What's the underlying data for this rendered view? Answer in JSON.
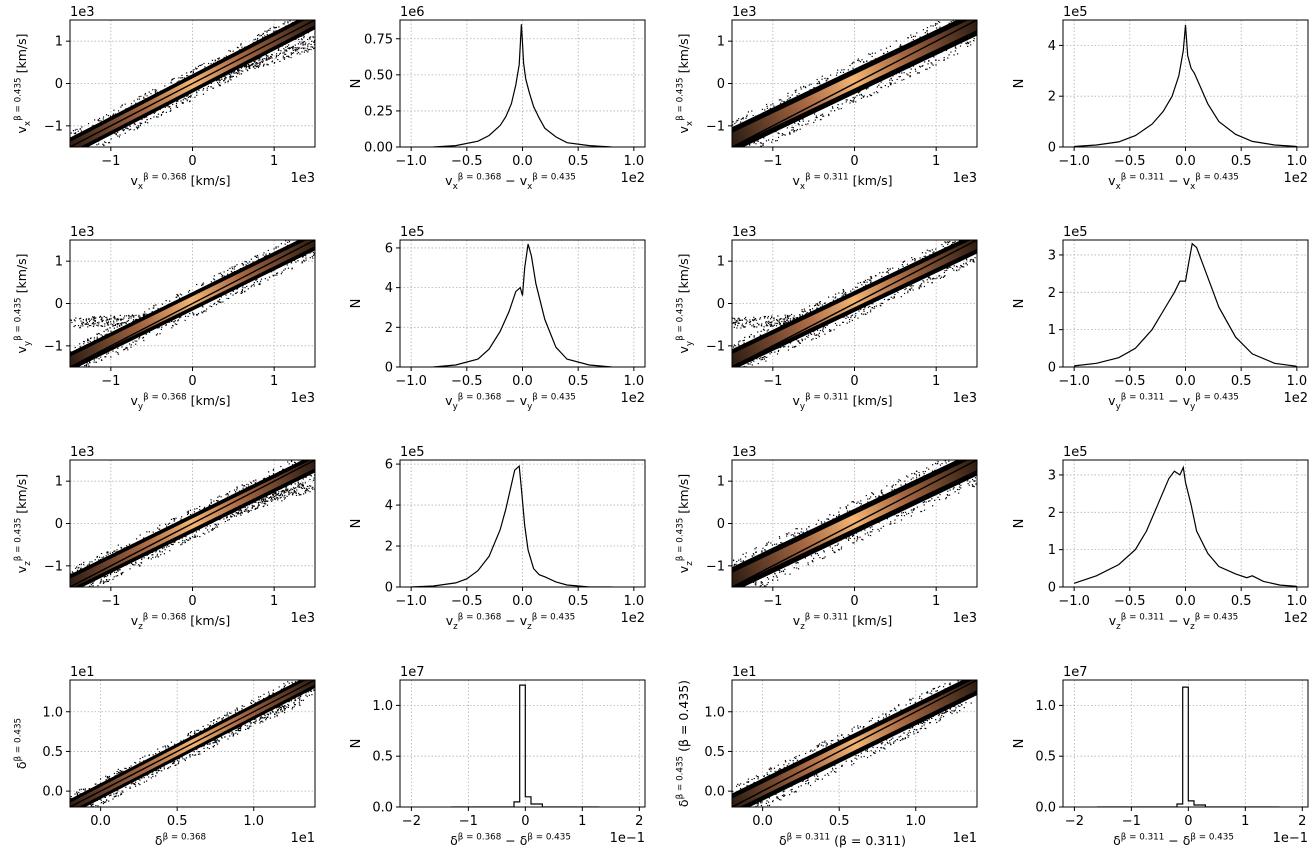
{
  "figure": {
    "background": "#ffffff",
    "frame_color": "#000000",
    "grid_color": "#b0b0b0"
  },
  "chart_data": [
    {
      "type": "scatter",
      "xlabel": "v_x^{β = 0.368} [km/s]",
      "ylabel": "v_x^{β = 0.435} [km/s]",
      "x_offset": "1e3",
      "y_offset": "1e3",
      "xlim": [
        -1.5,
        1.5
      ],
      "ylim": [
        -1.5,
        1.5
      ],
      "xticks": [
        -1,
        0,
        1
      ],
      "yticks": [
        -1,
        0,
        1
      ],
      "grid": true,
      "band": {
        "slope": 1.0,
        "intercept": 0.0,
        "halfwidth": 0.22
      },
      "cmap": "copper",
      "scatter_outliers": {
        "slope": 0.62,
        "intercept": 0.0,
        "x_range": [
          0.3,
          1.5
        ]
      },
      "series": [
        {
          "name": "",
          "x": [
            -1.5,
            1.5
          ],
          "y": [
            -1.5,
            1.5
          ]
        }
      ]
    },
    {
      "type": "line",
      "xlabel": "v_x^{β = 0.368} − v_x^{β = 0.435}",
      "ylabel": "N",
      "x_offset": "1e2",
      "y_offset": "1e6",
      "xlim": [
        -1.1,
        1.1
      ],
      "ylim": [
        0,
        0.88
      ],
      "xticks": [
        -1.0,
        -0.5,
        0.0,
        0.5,
        1.0
      ],
      "xtick_labels": [
        "−1.0",
        "−0.5",
        "0.0",
        "0.5",
        "1.0"
      ],
      "yticks": [
        0.0,
        0.25,
        0.5,
        0.75
      ],
      "ytick_labels": [
        "0.00",
        "0.25",
        "0.50",
        "0.75"
      ],
      "grid": true,
      "series": [
        {
          "name": "",
          "x": [
            -0.8,
            -0.6,
            -0.4,
            -0.3,
            -0.2,
            -0.15,
            -0.1,
            -0.06,
            -0.03,
            -0.01,
            0.0,
            0.01,
            0.03,
            0.06,
            0.1,
            0.15,
            0.2,
            0.3,
            0.4,
            0.6,
            0.8
          ],
          "y": [
            0.0,
            0.01,
            0.04,
            0.08,
            0.15,
            0.21,
            0.3,
            0.43,
            0.57,
            0.85,
            0.72,
            0.58,
            0.47,
            0.38,
            0.28,
            0.2,
            0.13,
            0.07,
            0.03,
            0.01,
            0.0
          ]
        }
      ]
    },
    {
      "type": "scatter",
      "xlabel": "v_x^{β = 0.311} [km/s]",
      "ylabel": "v_x^{β = 0.435} [km/s]",
      "x_offset": "1e3",
      "y_offset": "1e3",
      "xlim": [
        -1.5,
        1.5
      ],
      "ylim": [
        -1.5,
        1.5
      ],
      "xticks": [
        -1,
        0,
        1
      ],
      "yticks": [
        -1,
        0,
        1
      ],
      "grid": true,
      "band": {
        "slope": 0.92,
        "intercept": 0.05,
        "halfwidth": 0.3
      },
      "cmap": "copper",
      "series": [
        {
          "name": "",
          "x": [
            -1.5,
            1.5
          ],
          "y": [
            -1.5,
            1.5
          ]
        }
      ]
    },
    {
      "type": "line",
      "xlabel": "v_x^{β = 0.311} − v_x^{β = 0.435}",
      "ylabel": "N",
      "x_offset": "1e2",
      "y_offset": "1e5",
      "xlim": [
        -1.1,
        1.1
      ],
      "ylim": [
        0,
        5.0
      ],
      "xticks": [
        -1.0,
        -0.5,
        0.0,
        0.5,
        1.0
      ],
      "xtick_labels": [
        "−1.0",
        "−0.5",
        "0.0",
        "0.5",
        "1.0"
      ],
      "yticks": [
        0,
        2,
        4
      ],
      "ytick_labels": [
        "0",
        "2",
        "4"
      ],
      "grid": true,
      "series": [
        {
          "name": "",
          "x": [
            -1.0,
            -0.8,
            -0.6,
            -0.45,
            -0.3,
            -0.2,
            -0.12,
            -0.06,
            -0.02,
            0.0,
            0.02,
            0.05,
            0.08,
            0.12,
            0.2,
            0.3,
            0.45,
            0.6,
            0.8,
            1.0
          ],
          "y": [
            0.02,
            0.08,
            0.2,
            0.45,
            0.9,
            1.4,
            2.0,
            2.8,
            3.8,
            4.8,
            3.6,
            3.1,
            2.9,
            2.5,
            1.7,
            1.0,
            0.5,
            0.22,
            0.08,
            0.02
          ]
        }
      ]
    },
    {
      "type": "scatter",
      "xlabel": "v_y^{β = 0.368} [km/s]",
      "ylabel": "v_y^{β = 0.435} [km/s]",
      "x_offset": "1e3",
      "y_offset": "1e3",
      "xlim": [
        -1.5,
        1.5
      ],
      "ylim": [
        -1.5,
        1.5
      ],
      "xticks": [
        -1,
        0,
        1
      ],
      "yticks": [
        -1,
        0,
        1
      ],
      "grid": true,
      "band": {
        "slope": 0.95,
        "intercept": 0.05,
        "halfwidth": 0.22
      },
      "cmap": "copper",
      "scatter_outliers": {
        "slope": 0.1,
        "intercept": -0.3,
        "x_range": [
          -1.5,
          -0.4
        ]
      },
      "series": [
        {
          "name": "",
          "x": [
            -1.5,
            1.5
          ],
          "y": [
            -1.5,
            1.5
          ]
        }
      ]
    },
    {
      "type": "line",
      "xlabel": "v_y^{β = 0.368} − v_y^{β = 0.435}",
      "ylabel": "N",
      "x_offset": "1e2",
      "y_offset": "1e5",
      "xlim": [
        -1.1,
        1.1
      ],
      "ylim": [
        0,
        6.4
      ],
      "xticks": [
        -1.0,
        -0.5,
        0.0,
        0.5,
        1.0
      ],
      "xtick_labels": [
        "−1.0",
        "−0.5",
        "0.0",
        "0.5",
        "1.0"
      ],
      "yticks": [
        0,
        2,
        4,
        6
      ],
      "ytick_labels": [
        "0",
        "2",
        "4",
        "6"
      ],
      "grid": true,
      "series": [
        {
          "name": "",
          "x": [
            -0.8,
            -0.6,
            -0.4,
            -0.3,
            -0.2,
            -0.12,
            -0.06,
            -0.02,
            0.0,
            0.02,
            0.05,
            0.08,
            0.12,
            0.2,
            0.3,
            0.4,
            0.6,
            0.8
          ],
          "y": [
            0.0,
            0.1,
            0.4,
            0.9,
            1.8,
            2.8,
            3.8,
            4.0,
            3.6,
            5.0,
            6.2,
            5.6,
            4.2,
            2.4,
            1.0,
            0.4,
            0.1,
            0.0
          ]
        }
      ]
    },
    {
      "type": "scatter",
      "xlabel": "v_y^{β = 0.311} [km/s]",
      "ylabel": "v_y^{β = 0.435} [km/s]",
      "x_offset": "1e3",
      "y_offset": "1e3",
      "xlim": [
        -1.5,
        1.5
      ],
      "ylim": [
        -1.5,
        1.5
      ],
      "xticks": [
        -1,
        0,
        1
      ],
      "yticks": [
        -1,
        0,
        1
      ],
      "grid": true,
      "band": {
        "slope": 0.92,
        "intercept": 0.05,
        "halfwidth": 0.25
      },
      "cmap": "copper",
      "scatter_outliers": {
        "slope": 0.1,
        "intercept": -0.3,
        "x_range": [
          -1.5,
          -0.4
        ]
      },
      "series": [
        {
          "name": "",
          "x": [
            -1.5,
            1.5
          ],
          "y": [
            -1.5,
            1.5
          ]
        }
      ]
    },
    {
      "type": "line",
      "xlabel": "v_y^{β = 0.311} − v_y^{β = 0.435}",
      "ylabel": "N",
      "x_offset": "1e2",
      "y_offset": "1e5",
      "xlim": [
        -1.1,
        1.1
      ],
      "ylim": [
        0,
        3.4
      ],
      "xticks": [
        -1.0,
        -0.5,
        0.0,
        0.5,
        1.0
      ],
      "xtick_labels": [
        "−1.0",
        "−0.5",
        "0.0",
        "0.5",
        "1.0"
      ],
      "yticks": [
        0,
        1,
        2,
        3
      ],
      "ytick_labels": [
        "0",
        "1",
        "2",
        "3"
      ],
      "grid": true,
      "series": [
        {
          "name": "",
          "x": [
            -1.0,
            -0.8,
            -0.6,
            -0.45,
            -0.3,
            -0.2,
            -0.1,
            -0.05,
            0.0,
            0.03,
            0.06,
            0.1,
            0.15,
            0.2,
            0.3,
            0.45,
            0.6,
            0.8,
            1.0
          ],
          "y": [
            0.03,
            0.1,
            0.25,
            0.5,
            1.0,
            1.5,
            2.0,
            2.3,
            2.3,
            2.8,
            3.3,
            3.2,
            2.8,
            2.4,
            1.6,
            0.8,
            0.35,
            0.1,
            0.02
          ]
        }
      ]
    },
    {
      "type": "scatter",
      "xlabel": "v_z^{β = 0.368} [km/s]",
      "ylabel": "v_z^{β = 0.435} [km/s]",
      "x_offset": "1e3",
      "y_offset": "1e3",
      "xlim": [
        -1.5,
        1.5
      ],
      "ylim": [
        -1.5,
        1.5
      ],
      "xticks": [
        -1,
        0,
        1
      ],
      "yticks": [
        -1,
        0,
        1
      ],
      "grid": true,
      "band": {
        "slope": 0.95,
        "intercept": 0.0,
        "halfwidth": 0.22
      },
      "cmap": "copper",
      "scatter_outliers": {
        "slope": 0.62,
        "intercept": 0.0,
        "x_range": [
          0.3,
          1.5
        ]
      },
      "series": [
        {
          "name": "",
          "x": [
            -1.5,
            1.5
          ],
          "y": [
            -1.5,
            1.5
          ]
        }
      ]
    },
    {
      "type": "line",
      "xlabel": "v_z^{β = 0.368} − v_z^{β = 0.435}",
      "ylabel": "N",
      "x_offset": "1e2",
      "y_offset": "1e5",
      "xlim": [
        -1.1,
        1.1
      ],
      "ylim": [
        0,
        6.2
      ],
      "xticks": [
        -1.0,
        -0.5,
        0.0,
        0.5,
        1.0
      ],
      "xtick_labels": [
        "−1.0",
        "−0.5",
        "0.0",
        "0.5",
        "1.0"
      ],
      "yticks": [
        0,
        2,
        4,
        6
      ],
      "ytick_labels": [
        "0",
        "2",
        "4",
        "6"
      ],
      "grid": true,
      "series": [
        {
          "name": "",
          "x": [
            -1.0,
            -0.8,
            -0.6,
            -0.5,
            -0.4,
            -0.3,
            -0.2,
            -0.15,
            -0.1,
            -0.07,
            -0.05,
            -0.03,
            -0.01,
            0.02,
            0.05,
            0.1,
            0.15,
            0.2,
            0.3,
            0.4,
            0.6,
            0.8
          ],
          "y": [
            0.0,
            0.05,
            0.2,
            0.4,
            0.8,
            1.5,
            2.8,
            3.8,
            5.0,
            5.7,
            5.8,
            5.9,
            4.8,
            3.0,
            1.8,
            0.9,
            0.6,
            0.5,
            0.25,
            0.1,
            0.0,
            0.0
          ]
        }
      ]
    },
    {
      "type": "scatter",
      "xlabel": "v_z^{β = 0.311} [km/s]",
      "ylabel": "v_z^{β = 0.435} [km/s]",
      "x_offset": "1e3",
      "y_offset": "1e3",
      "xlim": [
        -1.5,
        1.5
      ],
      "ylim": [
        -1.5,
        1.5
      ],
      "xticks": [
        -1,
        0,
        1
      ],
      "yticks": [
        -1,
        0,
        1
      ],
      "grid": true,
      "band": {
        "slope": 0.92,
        "intercept": 0.05,
        "halfwidth": 0.3
      },
      "cmap": "copper",
      "series": [
        {
          "name": "",
          "x": [
            -1.5,
            1.5
          ],
          "y": [
            -1.5,
            1.5
          ]
        }
      ]
    },
    {
      "type": "line",
      "xlabel": "v_z^{β = 0.311} − v_z^{β = 0.435}",
      "ylabel": "N",
      "x_offset": "1e2",
      "y_offset": "1e5",
      "xlim": [
        -1.1,
        1.1
      ],
      "ylim": [
        0,
        3.4
      ],
      "xticks": [
        -1.0,
        -0.5,
        0.0,
        0.5,
        1.0
      ],
      "xtick_labels": [
        "−1.0",
        "−0.5",
        "0.0",
        "0.5",
        "1.0"
      ],
      "yticks": [
        0,
        1,
        2,
        3
      ],
      "ytick_labels": [
        "0",
        "1",
        "2",
        "3"
      ],
      "grid": true,
      "series": [
        {
          "name": "",
          "x": [
            -1.0,
            -0.8,
            -0.6,
            -0.45,
            -0.35,
            -0.25,
            -0.15,
            -0.1,
            -0.05,
            -0.02,
            0.0,
            0.05,
            0.1,
            0.2,
            0.3,
            0.45,
            0.55,
            0.6,
            0.7,
            0.85,
            1.0
          ],
          "y": [
            0.1,
            0.3,
            0.6,
            1.0,
            1.5,
            2.2,
            2.9,
            3.1,
            3.0,
            3.2,
            2.8,
            2.2,
            1.5,
            0.9,
            0.55,
            0.35,
            0.25,
            0.3,
            0.15,
            0.05,
            0.02
          ]
        }
      ]
    },
    {
      "type": "scatter",
      "xlabel": "δ^{β = 0.368}",
      "ylabel": "δ^{β = 0.435}",
      "x_offset": "1e1",
      "y_offset": "1e1",
      "xlim": [
        -0.2,
        1.4
      ],
      "ylim": [
        -0.2,
        1.4
      ],
      "xticks": [
        0.0,
        0.5,
        1.0
      ],
      "yticks": [
        0.0,
        0.5,
        1.0
      ],
      "grid": true,
      "band": {
        "slope": 1.0,
        "intercept": 0.0,
        "halfwidth": 0.1
      },
      "cmap": "copper",
      "scatter_outliers": {
        "slope": 0.8,
        "intercept": 0.1,
        "x_range": [
          0.3,
          1.3
        ]
      },
      "series": [
        {
          "name": "",
          "x": [
            -0.2,
            1.4
          ],
          "y": [
            -0.2,
            1.4
          ]
        }
      ]
    },
    {
      "type": "line",
      "xlabel": "δ^{β = 0.368} − δ^{β = 0.435}",
      "ylabel": "N",
      "x_offset": "1e−1",
      "y_offset": "1e7",
      "xlim": [
        -2.2,
        2.1
      ],
      "ylim": [
        0,
        1.25
      ],
      "xticks": [
        -2,
        -1,
        0,
        1,
        2
      ],
      "xtick_labels": [
        "−2",
        "−1",
        "0",
        "1",
        "2"
      ],
      "yticks": [
        0.0,
        0.5,
        1.0
      ],
      "ytick_labels": [
        "0.0",
        "0.5",
        "1.0"
      ],
      "grid": true,
      "series": [
        {
          "name": "",
          "x": [
            -1.3,
            -0.2,
            -0.2,
            -0.1,
            -0.1,
            0.0,
            0.0,
            0.1,
            0.1,
            0.3,
            0.3,
            1.3
          ],
          "y": [
            0.0,
            0.0,
            0.05,
            0.05,
            1.2,
            1.2,
            0.1,
            0.1,
            0.03,
            0.03,
            0.0,
            0.0
          ]
        }
      ]
    },
    {
      "type": "scatter",
      "xlabel": "δ^{β = 0.311} (β = 0.311)",
      "ylabel": "δ^{β = 0.435} (β = 0.435)",
      "x_offset": "1e1",
      "y_offset": "1e1",
      "xlim": [
        -0.2,
        1.4
      ],
      "ylim": [
        -0.2,
        1.4
      ],
      "xticks": [
        0.0,
        0.5,
        1.0
      ],
      "yticks": [
        0.0,
        0.5,
        1.0
      ],
      "grid": true,
      "band": {
        "slope": 0.95,
        "intercept": 0.02,
        "halfwidth": 0.14
      },
      "cmap": "copper",
      "scatter_outliers": {
        "slope": 0.8,
        "intercept": 0.1,
        "x_range": [
          0.3,
          1.3
        ]
      },
      "series": [
        {
          "name": "",
          "x": [
            -0.2,
            1.4
          ],
          "y": [
            -0.2,
            1.4
          ]
        }
      ]
    },
    {
      "type": "line",
      "xlabel": "δ^{β = 0.311} − δ^{β = 0.435}",
      "ylabel": "N",
      "x_offset": "1e−1",
      "y_offset": "1e7",
      "xlim": [
        -2.2,
        2.1
      ],
      "ylim": [
        0,
        1.25
      ],
      "xticks": [
        -2,
        -1,
        0,
        1,
        2
      ],
      "xtick_labels": [
        "−2",
        "−1",
        "0",
        "1",
        "2"
      ],
      "yticks": [
        0.0,
        0.5,
        1.0
      ],
      "ytick_labels": [
        "0.0",
        "0.5",
        "1.0"
      ],
      "grid": true,
      "series": [
        {
          "name": "",
          "x": [
            -1.6,
            -0.2,
            -0.2,
            -0.1,
            -0.1,
            0.0,
            0.0,
            0.1,
            0.1,
            0.3,
            0.3,
            1.6
          ],
          "y": [
            0.0,
            0.0,
            0.03,
            0.03,
            1.18,
            1.18,
            0.06,
            0.06,
            0.02,
            0.02,
            0.0,
            0.0
          ]
        }
      ]
    }
  ]
}
